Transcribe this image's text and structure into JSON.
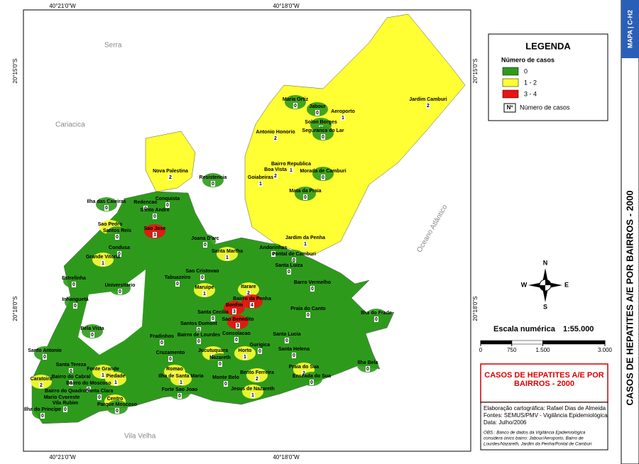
{
  "map": {
    "title": "CASOS DE HEPATITES A/E POR BAIRROS - 2000",
    "sheet": "MAPA | C-H2",
    "coordinates": {
      "top": [
        "40°21'0\"W",
        "40°18'0\"W"
      ],
      "bottom": [
        "40°21'0\"W",
        "40°18'0\"W"
      ],
      "left": [
        "20°15'0\"S",
        "20°18'0\"S"
      ],
      "right": [
        "20°15'0\"S",
        "20°18'0\"S"
      ]
    },
    "places": [
      "Serra",
      "Cariacica",
      "Vila Velha",
      "Oceano Atlântico"
    ],
    "legend": {
      "title": "LEGENDA",
      "subtitle": "Número de casos",
      "classes": [
        {
          "label": "0",
          "color": "#2e9a1c"
        },
        {
          "label": "1 - 2",
          "color": "#ffff33"
        },
        {
          "label": "3 - 4",
          "color": "#ee1111"
        }
      ],
      "symbol": "Nº",
      "symbol_label": "Número de casos"
    },
    "compass": [
      "N",
      "S",
      "E",
      "W"
    ],
    "scale": {
      "label": "Escala numérica",
      "ratio": "1:55.000",
      "ticks": [
        0,
        750,
        {
          "value": 1500,
          "label": "1.500"
        },
        {
          "value": 3000,
          "label": "3.000"
        }
      ]
    },
    "credits": [
      "Elaboração cartográfica: Rafael Dias de Almeida",
      "Fontes: SEMUS/PMV - Vigilância Epidemiológica",
      "Data: Julho/2006"
    ],
    "notes": [
      "OBS.: Banco de dados da Vigilância Epidemiológica",
      "considera único bairro: Jabour/Aeroporto, Bairro de",
      "Lourdes/Nazareth, Jardim da Penha/Pontal de Camburi"
    ],
    "neighborhoods": [
      {
        "name": "Maria Ortiz",
        "cases": 0
      },
      {
        "name": "Jabour",
        "cases": 0
      },
      {
        "name": "Aeroporto",
        "cases": 1
      },
      {
        "name": "Jardim Camburi",
        "cases": 2
      },
      {
        "name": "Solon Borges",
        "cases": 0
      },
      {
        "name": "Seguranca do Lar",
        "cases": 0
      },
      {
        "name": "Antonio Honorio",
        "cases": 2
      },
      {
        "name": "Bairro Republica",
        "cases": 1
      },
      {
        "name": "Morada de Camburi",
        "cases": 0
      },
      {
        "name": "Boa Vista",
        "cases": 2
      },
      {
        "name": "Goiabeiras",
        "cases": 1
      },
      {
        "name": "Mata da Praia",
        "cases": 0
      },
      {
        "name": "Jardim da Penha",
        "cases": 1
      },
      {
        "name": "Nova Palestina",
        "cases": 2
      },
      {
        "name": "Resistencia",
        "cases": 0
      },
      {
        "name": "Ilha das Caieiras",
        "cases": 0
      },
      {
        "name": "Redencao",
        "cases": 0
      },
      {
        "name": "Conquista",
        "cases": 0
      },
      {
        "name": "Santo Andre",
        "cases": 0
      },
      {
        "name": "Sao Pedro",
        "cases": 2
      },
      {
        "name": "Santos Reis",
        "cases": 0
      },
      {
        "name": "Sao Jose",
        "cases": 3
      },
      {
        "name": "Joana D'arc",
        "cases": 0
      },
      {
        "name": "Condusa",
        "cases": 0
      },
      {
        "name": "Grande Vitoria",
        "cases": 1
      },
      {
        "name": "Andorinhas",
        "cases": 0
      },
      {
        "name": "Pontal de Camburi",
        "cases": 0
      },
      {
        "name": "Santa Martha",
        "cases": 1
      },
      {
        "name": "Santa Luiza",
        "cases": 0
      },
      {
        "name": "Sao Cristovao",
        "cases": 0
      },
      {
        "name": "Estrelinha",
        "cases": 0
      },
      {
        "name": "Universitario",
        "cases": 0
      },
      {
        "name": "Tabuazeiro",
        "cases": 0
      },
      {
        "name": "Maruipe",
        "cases": 1
      },
      {
        "name": "Itarare",
        "cases": 2
      },
      {
        "name": "Barro Vermelho",
        "cases": 0
      },
      {
        "name": "Inhanguetá",
        "cases": 0
      },
      {
        "name": "Bairro da Penha",
        "cases": 4
      },
      {
        "name": "Bonfim",
        "cases": 3
      },
      {
        "name": "Praia do Canto",
        "cases": 0
      },
      {
        "name": "Ilha do Frade",
        "cases": 0
      },
      {
        "name": "Santa Cecilia",
        "cases": 0
      },
      {
        "name": "Sao Benedito",
        "cases": 3
      },
      {
        "name": "Santos Dumont",
        "cases": 0
      },
      {
        "name": "Bela Vista",
        "cases": 0
      },
      {
        "name": "Fradinhos",
        "cases": 0
      },
      {
        "name": "Bairro de Lourdes",
        "cases": 0
      },
      {
        "name": "Consolacao",
        "cases": 0
      },
      {
        "name": "Santa Lucia",
        "cases": 0
      },
      {
        "name": "Gurigica",
        "cases": 0
      },
      {
        "name": "Cruzamento",
        "cases": 0
      },
      {
        "name": "Jucutuquara",
        "cases": 1
      },
      {
        "name": "Nazareth",
        "cases": 0
      },
      {
        "name": "Horto",
        "cases": 1
      },
      {
        "name": "Santa Helena",
        "cases": 0
      },
      {
        "name": "Santo Antonio",
        "cases": 0
      },
      {
        "name": "Santa Tereza",
        "cases": 0
      },
      {
        "name": "Romao",
        "cases": 2
      },
      {
        "name": "Ilha de Santa Maria",
        "cases": 1
      },
      {
        "name": "Forte Sao Joao",
        "cases": 0
      },
      {
        "name": "Monte Belo",
        "cases": 0
      },
      {
        "name": "Bento Ferreira",
        "cases": 2
      },
      {
        "name": "Jesus de Nazareth",
        "cases": 1
      },
      {
        "name": "Praia do Sua",
        "cases": 2
      },
      {
        "name": "Enseada do Sua",
        "cases": 0
      },
      {
        "name": "Ilha Bela",
        "cases": 0
      },
      {
        "name": "Fonte Grande",
        "cases": 1
      },
      {
        "name": "Piedade",
        "cases": 1
      },
      {
        "name": "Caratoira",
        "cases": 2
      },
      {
        "name": "Bairro do Cabral",
        "cases": 0
      },
      {
        "name": "Bairro do Moscoso",
        "cases": 0
      },
      {
        "name": "Bairro do Quadro",
        "cases": 0
      },
      {
        "name": "Santa Clara",
        "cases": 0
      },
      {
        "name": "Mario Cypreste",
        "cases": 0
      },
      {
        "name": "Vila Rubim",
        "cases": 0
      },
      {
        "name": "Centro",
        "cases": 2
      },
      {
        "name": "Parque Moscoso",
        "cases": 0
      },
      {
        "name": "Ilha do Principe",
        "cases": 0
      }
    ]
  }
}
